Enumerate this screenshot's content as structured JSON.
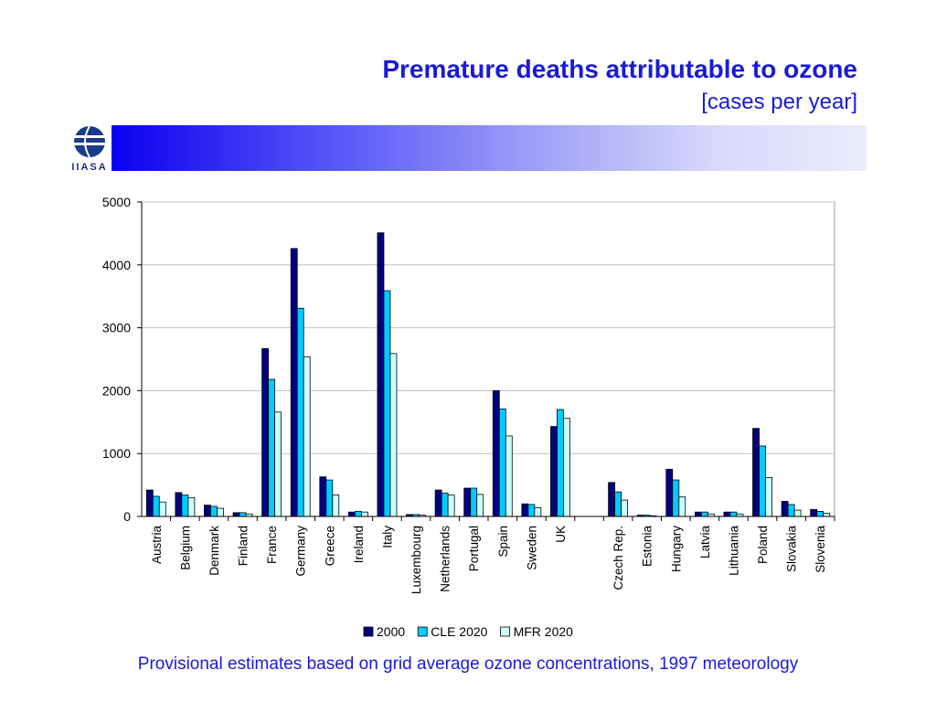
{
  "title": "Premature deaths attributable to ozone",
  "subtitle": "[cases per year]",
  "logo_text": "IIASA",
  "caption": "Provisional estimates based on grid average ozone concentrations, 1997 meteorology",
  "colors": {
    "accent": "#1a1adb",
    "s2000": "#000080",
    "cle": "#00ccff",
    "mfr": "#ccffff"
  },
  "chart_data": {
    "type": "bar",
    "title": "Premature deaths attributable to ozone",
    "subtitle": "[cases per year]",
    "xlabel": "",
    "ylabel": "",
    "ylim": [
      0,
      5000
    ],
    "yticks": [
      0,
      1000,
      2000,
      3000,
      4000,
      5000
    ],
    "grid": true,
    "legend": "bottom-center",
    "categories": [
      "Austria",
      "Belgium",
      "Denmark",
      "Finland",
      "France",
      "Germany",
      "Greece",
      "Ireland",
      "Italy",
      "Luxembourg",
      "Netherlands",
      "Portugal",
      "Spain",
      "Sweden",
      "UK",
      "",
      "Czech Rep.",
      "Estonia",
      "Hungary",
      "Latvia",
      "Lithuania",
      "Poland",
      "Slovakia",
      "Slovenia"
    ],
    "series": [
      {
        "name": "2000",
        "color": "#000080",
        "values": [
          420,
          380,
          180,
          60,
          2670,
          4260,
          630,
          70,
          4510,
          30,
          420,
          450,
          2000,
          200,
          1430,
          null,
          540,
          20,
          750,
          70,
          70,
          1400,
          240,
          110
        ]
      },
      {
        "name": "CLE 2020",
        "color": "#00ccff",
        "values": [
          320,
          340,
          160,
          60,
          2180,
          3310,
          580,
          80,
          3590,
          30,
          370,
          450,
          1710,
          190,
          1700,
          null,
          390,
          20,
          580,
          70,
          70,
          1120,
          190,
          80
        ]
      },
      {
        "name": "MFR 2020",
        "color": "#ccffff",
        "values": [
          230,
          300,
          130,
          40,
          1660,
          2540,
          340,
          70,
          2590,
          20,
          340,
          350,
          1280,
          140,
          1560,
          null,
          260,
          10,
          310,
          40,
          40,
          620,
          100,
          50
        ]
      }
    ]
  }
}
